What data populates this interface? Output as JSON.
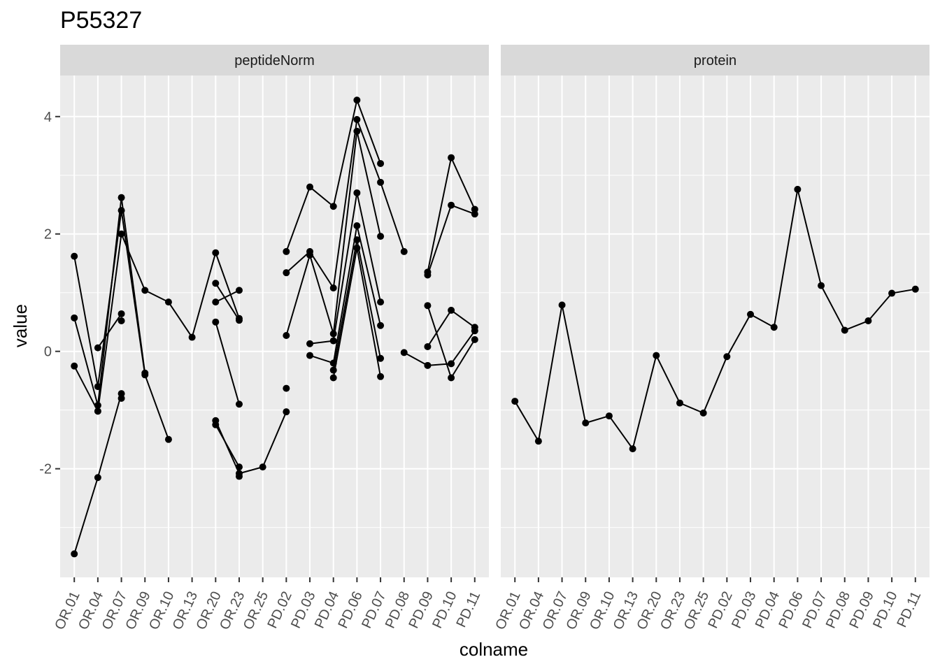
{
  "chart_data": {
    "type": "line",
    "title": "P55327",
    "xlabel": "colname",
    "ylabel": "value",
    "ylim": [
      -3.85,
      4.7
    ],
    "yticks": [
      -2,
      0,
      2,
      4
    ],
    "yticklabels": [
      "-2",
      "0",
      "2",
      "4"
    ],
    "grid": true,
    "categories": [
      "OR.01",
      "OR.04",
      "OR.07",
      "OR.09",
      "OR.10",
      "OR.13",
      "OR.20",
      "OR.23",
      "OR.25",
      "PD.02",
      "PD.03",
      "PD.04",
      "PD.06",
      "PD.07",
      "PD.08",
      "PD.09",
      "PD.10",
      "PD.11"
    ],
    "panels": [
      {
        "label": "peptideNorm",
        "series": [
          {
            "values": [
              -3.45,
              -2.15,
              -0.72,
              null,
              null,
              null,
              null,
              null,
              null,
              null,
              null,
              null,
              null,
              null,
              null,
              null,
              null,
              null
            ]
          },
          {
            "values": [
              1.62,
              -0.6,
              2.4,
              -0.4,
              -1.5,
              null,
              null,
              null,
              null,
              null,
              null,
              null,
              null,
              null,
              null,
              null,
              null,
              null
            ]
          },
          {
            "values": [
              0.57,
              -0.92,
              2.62,
              -0.37,
              null,
              null,
              null,
              null,
              null,
              null,
              null,
              null,
              null,
              null,
              null,
              null,
              null,
              null
            ]
          },
          {
            "values": [
              -0.25,
              -1.02,
              2.0,
              1.04,
              0.84,
              0.24,
              1.68,
              0.56,
              null,
              null,
              null,
              null,
              null,
              null,
              null,
              null,
              null,
              null
            ]
          },
          {
            "values": [
              null,
              0.06,
              0.64,
              null,
              null,
              null,
              1.16,
              0.53,
              null,
              null,
              null,
              null,
              null,
              null,
              null,
              null,
              null,
              null
            ]
          },
          {
            "values": [
              null,
              null,
              0.52,
              null,
              null,
              null,
              0.84,
              1.04,
              null,
              null,
              null,
              null,
              null,
              null,
              null,
              null,
              null,
              null
            ]
          },
          {
            "values": [
              null,
              null,
              -0.8,
              null,
              null,
              null,
              0.5,
              -0.9,
              null,
              null,
              null,
              null,
              null,
              null,
              null,
              null,
              null,
              null
            ]
          },
          {
            "values": [
              null,
              null,
              null,
              null,
              null,
              null,
              -1.18,
              -2.08,
              -1.97,
              -1.03,
              null,
              null,
              null,
              null,
              null,
              null,
              null,
              null
            ]
          },
          {
            "values": [
              null,
              null,
              null,
              null,
              null,
              null,
              -1.25,
              -1.97,
              null,
              null,
              null,
              null,
              null,
              null,
              null,
              null,
              null,
              null
            ]
          },
          {
            "values": [
              null,
              null,
              null,
              null,
              null,
              null,
              null,
              -2.13,
              null,
              null,
              null,
              null,
              null,
              null,
              null,
              null,
              null,
              null
            ]
          },
          {
            "values": [
              null,
              null,
              null,
              null,
              null,
              null,
              null,
              null,
              null,
              1.7,
              2.8,
              2.47,
              4.28,
              3.2,
              null,
              null,
              null,
              null
            ]
          },
          {
            "values": [
              null,
              null,
              null,
              null,
              null,
              null,
              null,
              null,
              null,
              1.34,
              1.7,
              1.08,
              3.95,
              2.88,
              1.7,
              null,
              null,
              null
            ]
          },
          {
            "values": [
              null,
              null,
              null,
              null,
              null,
              null,
              null,
              null,
              null,
              0.27,
              1.64,
              0.3,
              3.75,
              1.96,
              null,
              null,
              null,
              null
            ]
          },
          {
            "values": [
              null,
              null,
              null,
              null,
              null,
              null,
              null,
              null,
              null,
              -0.63,
              null,
              null,
              null,
              null,
              null,
              null,
              null,
              null
            ]
          },
          {
            "values": [
              null,
              null,
              null,
              null,
              null,
              null,
              null,
              null,
              null,
              null,
              0.13,
              0.18,
              2.7,
              0.84,
              null,
              null,
              null,
              null
            ]
          },
          {
            "values": [
              null,
              null,
              null,
              null,
              null,
              null,
              null,
              null,
              null,
              null,
              -0.07,
              -0.2,
              2.14,
              0.44,
              null,
              null,
              null,
              null
            ]
          },
          {
            "values": [
              null,
              null,
              null,
              null,
              null,
              null,
              null,
              null,
              null,
              null,
              null,
              -0.32,
              1.9,
              -0.12,
              null,
              null,
              null,
              null
            ]
          },
          {
            "values": [
              null,
              null,
              null,
              null,
              null,
              null,
              null,
              null,
              null,
              null,
              null,
              -0.45,
              1.76,
              -0.43,
              null,
              null,
              null,
              null
            ]
          },
          {
            "values": [
              null,
              null,
              null,
              null,
              null,
              null,
              null,
              null,
              null,
              null,
              null,
              null,
              null,
              null,
              -0.02,
              -0.24,
              -0.21,
              0.35
            ]
          },
          {
            "values": [
              null,
              null,
              null,
              null,
              null,
              null,
              null,
              null,
              null,
              null,
              null,
              null,
              null,
              null,
              null,
              1.35,
              3.3,
              2.42
            ]
          },
          {
            "values": [
              null,
              null,
              null,
              null,
              null,
              null,
              null,
              null,
              null,
              null,
              null,
              null,
              null,
              null,
              null,
              1.3,
              2.49,
              2.34
            ]
          },
          {
            "values": [
              null,
              null,
              null,
              null,
              null,
              null,
              null,
              null,
              null,
              null,
              null,
              null,
              null,
              null,
              null,
              0.78,
              -0.45,
              0.2
            ]
          },
          {
            "values": [
              null,
              null,
              null,
              null,
              null,
              null,
              null,
              null,
              null,
              null,
              null,
              null,
              null,
              null,
              null,
              0.08,
              0.7,
              0.41
            ]
          }
        ]
      },
      {
        "label": "protein",
        "series": [
          {
            "values": [
              -0.85,
              -1.53,
              0.79,
              -1.22,
              -1.1,
              -1.66,
              -0.07,
              -0.88,
              -1.05,
              -0.09,
              0.63,
              0.41,
              2.76,
              1.12,
              0.36,
              0.52,
              0.99,
              1.06
            ]
          }
        ]
      }
    ]
  },
  "colors": {
    "panel_bg": "#ebebeb",
    "strip_bg": "#d9d9d9",
    "grid": "#ffffff",
    "line": "#000000",
    "tick": "#333333"
  }
}
